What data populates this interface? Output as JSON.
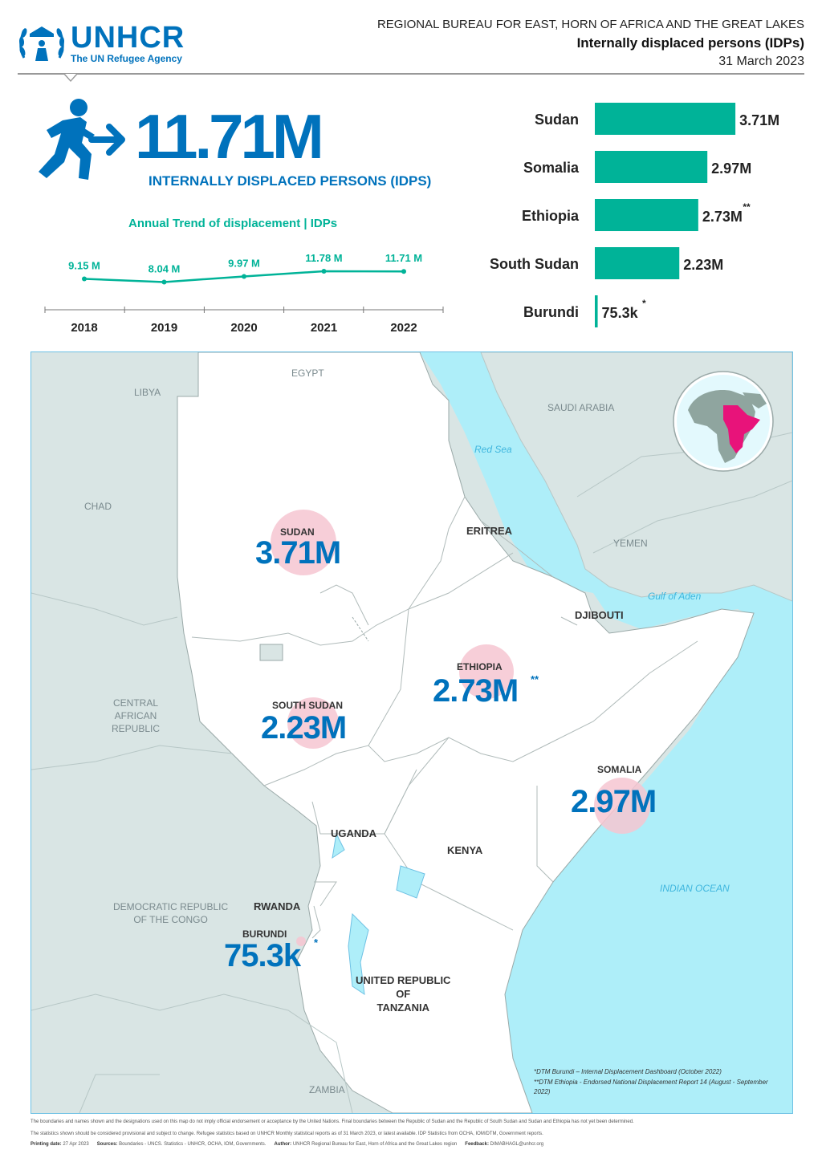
{
  "header": {
    "org_name": "UNHCR",
    "org_tagline": "The UN Refugee Agency",
    "bureau": "REGIONAL BUREAU FOR EAST, HORN OF AFRICA AND THE GREAT LAKES",
    "title": "Internally displaced persons (IDPs)",
    "date": "31 March 2023"
  },
  "kpi": {
    "value": "11.71M",
    "label": "INTERNALLY DISPLACED PERSONS (IDPS)"
  },
  "colors": {
    "brand_blue": "#0072bc",
    "teal": "#00b398",
    "bubble_pink": "#f6c5d1",
    "sea": "#aeeef9",
    "land_grey": "#d9e5e4",
    "highlight_magenta": "#e8137a"
  },
  "chart_data": [
    {
      "type": "line",
      "title": "Annual Trend of displacement | IDPs",
      "x": [
        "2018",
        "2019",
        "2020",
        "2021",
        "2022"
      ],
      "series": [
        {
          "values": [
            9.15,
            8.04,
            9.97,
            11.78,
            11.71
          ]
        }
      ],
      "data_labels": [
        "9.15 M",
        "8.04 M",
        "9.97 M",
        "11.78 M",
        "11.71 M"
      ],
      "grid": false
    },
    {
      "type": "bar",
      "orientation": "horizontal",
      "categories": [
        "Sudan",
        "Somalia",
        "Ethiopia",
        "South Sudan",
        "Burundi"
      ],
      "values": [
        3.71,
        2.97,
        2.73,
        2.23,
        0.0753
      ],
      "data_labels": [
        "3.71M",
        "2.97M",
        "2.73M",
        "2.23M",
        "75.3k"
      ],
      "label_marks": [
        "",
        "",
        "**",
        "",
        "*"
      ],
      "unit": "millions"
    }
  ],
  "map": {
    "neighbours": [
      {
        "id": "libya",
        "label": "LIBYA"
      },
      {
        "id": "egypt",
        "label": "EGYPT"
      },
      {
        "id": "saudi",
        "label": "SAUDI ARABIA"
      },
      {
        "id": "chad",
        "label": "CHAD"
      },
      {
        "id": "yemen",
        "label": "YEMEN"
      },
      {
        "id": "car",
        "label": "CENTRAL\nAFRICAN\nREPUBLIC"
      },
      {
        "id": "drc",
        "label": "DEMOCRATIC REPUBLIC\nOF THE CONGO"
      },
      {
        "id": "zambia",
        "label": "ZAMBIA"
      }
    ],
    "seas": {
      "red_sea": "Red Sea",
      "gulf_aden": "Gulf of Aden",
      "indian_ocean": "INDIAN OCEAN"
    },
    "countries": {
      "eritrea": "ERITREA",
      "djibouti": "DJIBOUTI",
      "uganda": "UGANDA",
      "kenya": "KENYA",
      "rwanda": "RWANDA",
      "tanzania": "UNITED REPUBLIC\nOF\nTANZANIA"
    },
    "figures": {
      "sudan": {
        "name": "SUDAN",
        "value": "3.71M"
      },
      "south_sudan": {
        "name": "SOUTH SUDAN",
        "value": "2.23M"
      },
      "ethiopia": {
        "name": "ETHIOPIA",
        "value": "2.73M",
        "mark": "**"
      },
      "somalia": {
        "name": "SOMALIA",
        "value": "2.97M"
      },
      "burundi": {
        "name": "BURUNDI",
        "value": "75.3k",
        "mark": "*"
      }
    },
    "footnotes": {
      "burundi": "*DTM Burundi – Internal Displacement Dashboard (October 2022)",
      "ethiopia": "**DTM Ethiopia - Endorsed National Displacement Report 14 (August - September 2022)"
    }
  },
  "footer": {
    "disclaimer": "The boundaries and names shown and the designations used on this map do not imply official endorsement or acceptance by the United Nations. Final boundaries between the Republic of Sudan and the Republic of South Sudan and Sudan and Ethiopia has not yet been determined.",
    "statistics_note": "The statistics shown should be considered provisional and subject to change. Refugee statistics based on UNHCR Monthly statistical reports as of 31 March 2023, or latest available. IDP Statistics from OCHA, IOM/DTM, Government reports.",
    "printing_label": "Printing date:",
    "printing_date": "27 Apr 2023",
    "sources_label": "Sources:",
    "sources": "Boundaries - UNCS. Statistics - UNHCR, OCHA, IOM, Governments.",
    "author_label": "Author:",
    "author": "UNHCR Regional Bureau for East, Horn of Africa and the Great Lakes region",
    "feedback_label": "Feedback:",
    "feedback": "DIMABHAGL@unhcr.org"
  }
}
